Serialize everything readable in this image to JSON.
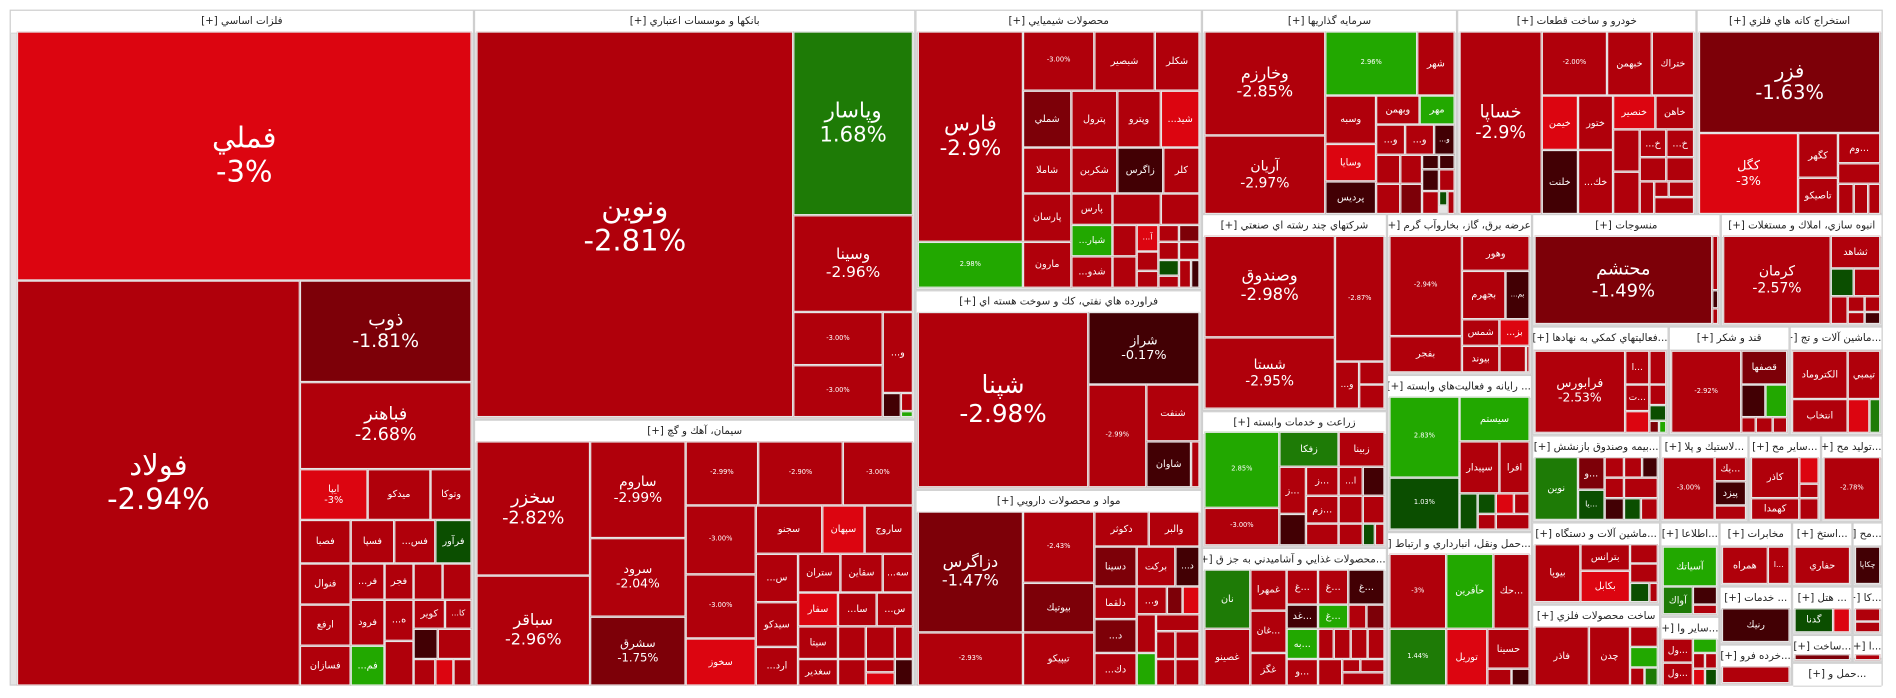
{
  "palette": {
    "m": "#b0000b",
    "d": "#7d0008",
    "b": "#dc0510",
    "k": "#420004",
    "g": "#22a800",
    "dg": "#1e7b06",
    "x": "#0b4e00"
  },
  "sectors": [
    {
      "title": "فلزات اساسي [+]",
      "tiles": [
        {
          "s": "فملي",
          "p": "-3%",
          "c": "b"
        },
        {
          "s": "فولاد",
          "p": "-2.94%",
          "c": "m"
        },
        {
          "s": "ذوب",
          "p": "-1.81%",
          "c": "d"
        },
        {
          "s": "فباهنر",
          "p": "-2.68%",
          "c": "m"
        },
        {
          "s": "ایپا",
          "p": "-3%",
          "c": "b"
        },
        {
          "s": "ميدكو",
          "c": "m"
        },
        {
          "s": "وتوكا",
          "c": "m"
        },
        {
          "s": "فصبا",
          "c": "m"
        },
        {
          "s": "فسپا",
          "c": "m"
        },
        {
          "s": "فس...",
          "c": "m"
        },
        {
          "s": "فرآور",
          "c": "x"
        },
        {
          "s": "فنوال",
          "c": "m"
        },
        {
          "s": "فر...",
          "c": "m"
        },
        {
          "s": "فجر",
          "c": "m"
        },
        {
          "s": "ارفع",
          "c": "m"
        },
        {
          "s": "فرود",
          "c": "m"
        },
        {
          "s": "ه...",
          "c": "m"
        },
        {
          "s": "كوير",
          "c": "m"
        },
        {
          "s": "كا...",
          "c": "m"
        },
        {
          "s": "فسازان",
          "c": "m"
        },
        {
          "s": "فم...",
          "c": "g"
        }
      ]
    },
    {
      "title": "بانكها و موسسات اعتباري [+]",
      "tiles": [
        {
          "s": "ونوين",
          "p": "-2.81%",
          "c": "m"
        },
        {
          "s": "وپاسار",
          "p": "1.68%",
          "c": "dg"
        },
        {
          "s": "وسينا",
          "p": "-2.96%",
          "c": "m"
        },
        {
          "s": "",
          "p": "-3.00%",
          "c": "m"
        },
        {
          "s": "",
          "p": "-3.00%",
          "c": "m"
        },
        {
          "s": "و...",
          "c": "m"
        }
      ]
    },
    {
      "title": "سيمان، آهك و گچ [+]",
      "tiles": [
        {
          "s": "سخزر",
          "p": "-2.82%",
          "c": "m"
        },
        {
          "s": "سباقر",
          "p": "-2.96%",
          "c": "m"
        },
        {
          "s": "ساروم",
          "p": "-2.99%",
          "c": "m"
        },
        {
          "s": "سرود",
          "p": "-2.04%",
          "c": "m"
        },
        {
          "s": "سشرق",
          "p": "-1.75%",
          "c": "d"
        },
        {
          "s": "",
          "p": "-2.99%",
          "c": "m"
        },
        {
          "s": "",
          "p": "-2.90%",
          "c": "m"
        },
        {
          "s": "",
          "p": "-3.00%",
          "c": "m"
        },
        {
          "s": "",
          "p": "-3.00%",
          "c": "m"
        },
        {
          "s": "سجنو",
          "c": "m"
        },
        {
          "s": "سپهان",
          "c": "b"
        },
        {
          "s": "ساروج",
          "c": "m"
        },
        {
          "s": "س...",
          "c": "m"
        },
        {
          "s": "ستران",
          "c": "m"
        },
        {
          "s": "سقاين",
          "c": "m"
        },
        {
          "s": "سه...",
          "c": "m"
        },
        {
          "s": "",
          "p": "-3.00%",
          "c": "m"
        },
        {
          "s": "سخوز",
          "c": "b"
        },
        {
          "s": "سيدكو",
          "c": "m"
        },
        {
          "s": "سفار",
          "c": "b"
        },
        {
          "s": "سا...",
          "c": "m"
        },
        {
          "s": "س...",
          "c": "m"
        },
        {
          "s": "سيتا",
          "c": "m"
        },
        {
          "s": "سغدير",
          "c": "m"
        },
        {
          "s": "ارد...",
          "c": "m"
        }
      ]
    },
    {
      "title": "محصولات شيميايي [+]",
      "tiles": [
        {
          "s": "فارس",
          "p": "-2.9%",
          "c": "m"
        },
        {
          "s": "",
          "p": "2.98%",
          "c": "g"
        },
        {
          "s": "",
          "p": "-3.00%",
          "c": "m"
        },
        {
          "s": "شبصير",
          "c": "m"
        },
        {
          "s": "شكلر",
          "c": "m"
        },
        {
          "s": "شملي",
          "c": "d"
        },
        {
          "s": "پترول",
          "c": "m"
        },
        {
          "s": "وپترو",
          "c": "m"
        },
        {
          "s": "شيد...",
          "c": "b"
        },
        {
          "s": "شاملا",
          "c": "m"
        },
        {
          "s": "شكربن",
          "c": "m"
        },
        {
          "s": "زاگرس",
          "c": "k"
        },
        {
          "s": "كلر",
          "c": "m"
        },
        {
          "s": "پارسان",
          "c": "m"
        },
        {
          "s": "پارس",
          "c": "m"
        },
        {
          "s": "مارون",
          "c": "m"
        },
        {
          "s": "شيار...",
          "c": "g"
        },
        {
          "s": "شدو...",
          "c": "m"
        },
        {
          "s": "آ...",
          "c": "b"
        }
      ]
    },
    {
      "title": "فراورده هاي نفتي، كك و سوخت هسته اي [+]",
      "tiles": [
        {
          "s": "شپنا",
          "p": "-2.98%",
          "c": "m"
        },
        {
          "s": "شراز",
          "p": "-0.17%",
          "c": "k"
        },
        {
          "s": "",
          "p": "-2.99%",
          "c": "m"
        },
        {
          "s": "شنفت",
          "c": "m"
        },
        {
          "s": "شاوان",
          "c": "k"
        }
      ]
    },
    {
      "title": "مواد و محصولات دارويي [+]",
      "tiles": [
        {
          "s": "دزاگرس",
          "p": "-1.47%",
          "c": "d"
        },
        {
          "s": "",
          "p": "-2.93%",
          "c": "m"
        },
        {
          "s": "",
          "p": "-2.43%",
          "c": "m"
        },
        {
          "s": "بيوتيك",
          "c": "d"
        },
        {
          "s": "تيپيكو",
          "c": "m"
        },
        {
          "s": "دكوثر",
          "c": "m"
        },
        {
          "s": "والبر",
          "c": "m"
        },
        {
          "s": "دسينا",
          "c": "d"
        },
        {
          "s": "بركت",
          "c": "m"
        },
        {
          "s": "د...",
          "c": "k"
        },
        {
          "s": "دلقما",
          "c": "m"
        },
        {
          "s": "و...",
          "c": "m"
        },
        {
          "s": "د...",
          "c": "d"
        },
        {
          "s": "دك...",
          "c": "m"
        }
      ]
    },
    {
      "title": "سرمايه گذاريها [+]",
      "tiles": [
        {
          "s": "وخارزم",
          "p": "-2.85%",
          "c": "m"
        },
        {
          "s": "آريان",
          "p": "-2.97%",
          "c": "m"
        },
        {
          "s": "",
          "p": "2.96%",
          "c": "g"
        },
        {
          "s": "شهر",
          "c": "m"
        },
        {
          "s": "وسبه",
          "c": "m"
        },
        {
          "s": "وبهمن",
          "c": "m"
        },
        {
          "s": "مهر",
          "c": "g"
        },
        {
          "s": "و...",
          "c": "m"
        },
        {
          "s": "و...",
          "c": "m"
        },
        {
          "s": "و...",
          "c": "k"
        },
        {
          "s": "وسايا",
          "c": "b"
        },
        {
          "s": "پرديس",
          "c": "k"
        }
      ]
    },
    {
      "title": "خودرو و ساخت قطعات [+]",
      "tiles": [
        {
          "s": "خساپا",
          "p": "-2.9%",
          "c": "m"
        },
        {
          "s": "",
          "p": "-2.00%",
          "c": "m"
        },
        {
          "s": "خبهمن",
          "c": "m"
        },
        {
          "s": "ختراك",
          "c": "m"
        },
        {
          "s": "خيمن",
          "c": "b"
        },
        {
          "s": "ختور",
          "c": "m"
        },
        {
          "s": "خنصير",
          "c": "b"
        },
        {
          "s": "خاهن",
          "c": "m"
        },
        {
          "s": "خلنت",
          "c": "k"
        },
        {
          "s": "خك...",
          "c": "m"
        },
        {
          "s": "خ...",
          "c": "m"
        },
        {
          "s": "خ...",
          "c": "m"
        }
      ]
    },
    {
      "title": "استخراج كانه هاي فلزي [+]",
      "tiles": [
        {
          "s": "فزر",
          "p": "-1.63%",
          "c": "d"
        },
        {
          "s": "كگل",
          "p": "-3%",
          "c": "b"
        },
        {
          "s": "كگهر",
          "c": "m"
        },
        {
          "s": "...وم",
          "c": "m"
        },
        {
          "s": "تاصيكو",
          "c": "m"
        }
      ]
    },
    {
      "title": "شركتهاي چند رشته اي صنعتي [+]",
      "tiles": [
        {
          "s": "وصندوق",
          "p": "-2.98%",
          "c": "m"
        },
        {
          "s": "شستا",
          "p": "-2.95%",
          "c": "m"
        },
        {
          "s": "",
          "p": "-2.87%",
          "c": "m"
        },
        {
          "s": "و...",
          "c": "m"
        }
      ]
    },
    {
      "title": "عرضه برق، گاز، بخاروآب گرم [+]",
      "tiles": [
        {
          "s": "",
          "p": "-2.94%",
          "c": "m"
        },
        {
          "s": "بفجر",
          "c": "m"
        },
        {
          "s": "وهور",
          "c": "m"
        },
        {
          "s": "بجهرم",
          "c": "m"
        },
        {
          "s": "بم...",
          "c": "k"
        },
        {
          "s": "شمس",
          "c": "m"
        },
        {
          "s": "بز...",
          "c": "b"
        },
        {
          "s": "بيوند",
          "c": "m"
        }
      ]
    },
    {
      "title": "منسوجات [+]",
      "tiles": [
        {
          "s": "محتشم",
          "p": "-1.49%",
          "c": "d"
        }
      ]
    },
    {
      "title": "انبوه سازي، املاك و مستغلات [+]",
      "tiles": [
        {
          "s": "كرمان",
          "p": "-2.57%",
          "c": "m"
        },
        {
          "s": "ثشاهد",
          "c": "m"
        }
      ]
    },
    {
      "title": "... رايانه و فعاليت‌هاي وابسته [+]",
      "tiles": [
        {
          "s": "",
          "p": "2.83%",
          "c": "g"
        },
        {
          "s": "سيستم",
          "c": "g"
        },
        {
          "s": "",
          "p": "1.03%",
          "c": "x"
        },
        {
          "s": "سپيدار",
          "c": "m"
        },
        {
          "s": "افرا",
          "c": "m"
        }
      ]
    },
    {
      "title": "زراعت و خدمات وابسته [+]",
      "tiles": [
        {
          "s": "",
          "p": "2.85%",
          "c": "g"
        },
        {
          "s": "زفكا",
          "c": "dg"
        },
        {
          "s": "زبينا",
          "c": "m"
        },
        {
          "s": "...ز",
          "c": "m"
        },
        {
          "s": "...ز",
          "c": "m"
        },
        {
          "s": "ا...",
          "c": "m"
        },
        {
          "s": "",
          "p": "-3.00%",
          "c": "m"
        },
        {
          "s": "...زم",
          "c": "m"
        }
      ]
    },
    {
      "title": "...محصولات غذايي و آشاميدني به جز ق [+]",
      "tiles": [
        {
          "s": "نان",
          "c": "dg"
        },
        {
          "s": "غصينو",
          "c": "m"
        },
        {
          "s": "غمهرا",
          "c": "m"
        },
        {
          "s": "...غان",
          "c": "m"
        },
        {
          "s": "غگز",
          "c": "m"
        },
        {
          "s": "...غ",
          "c": "m"
        },
        {
          "s": "...غ",
          "c": "m"
        },
        {
          "s": "...غ",
          "c": "k"
        },
        {
          "s": "...غد",
          "c": "k"
        },
        {
          "s": "...غ",
          "c": "g"
        },
        {
          "s": "...به",
          "c": "g"
        },
        {
          "s": "...و",
          "c": "m"
        }
      ]
    },
    {
      "title": "...حمل ونقل، انبارداري و ارتباط [+]",
      "tiles": [
        {
          "s": "",
          "p": "-3%",
          "c": "m"
        },
        {
          "s": "حآفرين",
          "c": "g"
        },
        {
          "s": "...حك",
          "c": "m"
        },
        {
          "s": "",
          "p": "1.44%",
          "c": "dg"
        },
        {
          "s": "توريل",
          "c": "b"
        },
        {
          "s": "حسينا",
          "c": "m"
        }
      ]
    },
    {
      "title": "...فعاليتهاي كمكي به نهادها [+]",
      "tiles": [
        {
          "s": "فرابورس",
          "p": "-2.53%",
          "c": "m"
        },
        {
          "s": "...ا",
          "c": "m"
        },
        {
          "s": "...ت",
          "c": "m"
        }
      ]
    },
    {
      "title": "قند و شكر [+]",
      "tiles": [
        {
          "s": "",
          "p": "-2.92%",
          "c": "m"
        },
        {
          "s": "قصفها",
          "c": "d"
        }
      ]
    },
    {
      "title": "...ماشين آلات و تج [+]",
      "tiles": [
        {
          "s": "الكتروماد",
          "c": "m"
        },
        {
          "s": "تيمبي",
          "c": "m"
        },
        {
          "s": "انتخاب",
          "c": "m"
        }
      ]
    },
    {
      "title": "...بيمه وصندوق بازنشش [+]",
      "tiles": [
        {
          "s": "نوين",
          "c": "dg"
        },
        {
          "s": "...و",
          "c": "d"
        },
        {
          "s": "...يا",
          "c": "x"
        }
      ]
    },
    {
      "title": "...لاستيك و پلا [+]",
      "tiles": [
        {
          "s": "",
          "p": "-3.00%",
          "c": "m"
        },
        {
          "s": "...يك",
          "c": "m"
        },
        {
          "s": "پيزد",
          "c": "k"
        }
      ]
    },
    {
      "title": "...ساير مح [+]",
      "tiles": [
        {
          "s": "كاذر",
          "c": "m"
        },
        {
          "s": "كهمدا",
          "c": "m"
        }
      ]
    },
    {
      "title": "...توليد مح [+]",
      "tiles": [
        {
          "s": "",
          "p": "-2.78%",
          "c": "m"
        }
      ]
    },
    {
      "title": "...ماشين آلات و دستگاه [+]",
      "tiles": [
        {
          "s": "بيوپا",
          "c": "m"
        },
        {
          "s": "بترانس",
          "c": "m"
        },
        {
          "s": "بكابل",
          "c": "b"
        }
      ]
    },
    {
      "title": "ساخت محصولات فلزي [+]",
      "tiles": [
        {
          "s": "فاذر",
          "c": "m"
        },
        {
          "s": "چدن",
          "c": "m"
        }
      ]
    },
    {
      "title": "...اطلاعا [+]",
      "tiles": [
        {
          "s": "آسياتك",
          "c": "g"
        },
        {
          "s": "آواك",
          "c": "dg"
        }
      ]
    },
    {
      "title": "...ساير وا [+]",
      "tiles": [
        {
          "s": "...ول",
          "c": "m"
        },
        {
          "s": "...ول",
          "c": "m"
        }
      ]
    },
    {
      "title": "مخابرات [+]",
      "tiles": [
        {
          "s": "همراه",
          "c": "m"
        },
        {
          "s": "...ا",
          "c": "m"
        }
      ]
    },
    {
      "title": "... خدمات [+]",
      "tiles": [
        {
          "s": "رنيك",
          "c": "k"
        }
      ]
    },
    {
      "title": "...خرده فرو [+]",
      "tiles": []
    },
    {
      "title": "...استخ [+]",
      "tiles": [
        {
          "s": "حفاري",
          "c": "m"
        }
      ]
    },
    {
      "title": "...مح [+]",
      "tiles": [
        {
          "s": "چكاپا",
          "c": "k"
        }
      ]
    },
    {
      "title": "... هتل [+]",
      "tiles": [
        {
          "s": "گدنا",
          "c": "x"
        }
      ]
    },
    {
      "title": "...كا [+]",
      "tiles": []
    },
    {
      "title": "...ساخت [+]",
      "tiles": []
    },
    {
      "title": "...ا [+]",
      "tiles": []
    },
    {
      "title": "...حمل و [+]",
      "tiles": []
    }
  ]
}
